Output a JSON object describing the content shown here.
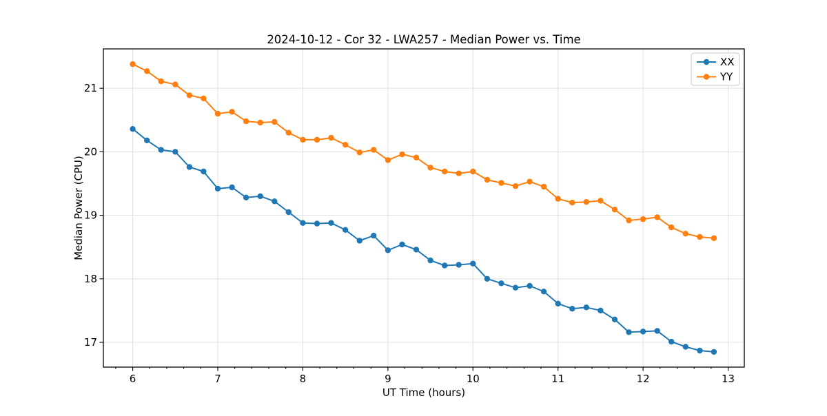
{
  "chart_data": {
    "type": "line",
    "title": "2024-10-12 - Cor 32 - LWA257 - Median Power vs. Time",
    "xlabel": "UT Time (hours)",
    "ylabel": "Median Power (CPU)",
    "xlim": [
      5.655,
      13.19
    ],
    "ylim": [
      16.61,
      21.62
    ],
    "xticks": [
      6,
      7,
      8,
      9,
      10,
      11,
      12,
      13
    ],
    "yticks": [
      17,
      18,
      19,
      20,
      21
    ],
    "x_minor_step": 0.2,
    "grid": true,
    "grid_color": "#e0e0e0",
    "background": "#ffffff",
    "spine_color": "#000000",
    "text_color": "#000000",
    "legend_position": "upper right",
    "x": [
      6,
      6.167,
      6.333,
      6.5,
      6.667,
      6.833,
      7,
      7.167,
      7.333,
      7.5,
      7.667,
      7.833,
      8,
      8.167,
      8.333,
      8.5,
      8.667,
      8.833,
      9,
      9.167,
      9.333,
      9.5,
      9.667,
      9.833,
      10,
      10.167,
      10.333,
      10.5,
      10.667,
      10.833,
      11,
      11.167,
      11.333,
      11.5,
      11.667,
      11.833,
      12,
      12.167,
      12.333,
      12.5,
      12.667,
      12.833
    ],
    "series": [
      {
        "name": "XX",
        "color": "#1f77b4",
        "marker": "circle",
        "values": [
          20.36,
          20.18,
          20.03,
          20.0,
          19.76,
          19.69,
          19.42,
          19.44,
          19.28,
          19.3,
          19.22,
          19.05,
          18.88,
          18.87,
          18.88,
          18.77,
          18.6,
          18.68,
          18.45,
          18.54,
          18.46,
          18.29,
          18.21,
          18.22,
          18.24,
          18.0,
          17.93,
          17.86,
          17.89,
          17.8,
          17.61,
          17.53,
          17.55,
          17.5,
          17.36,
          17.16,
          17.17,
          17.18,
          17.01,
          16.93,
          16.87,
          16.85
        ]
      },
      {
        "name": "YY",
        "color": "#ff7f0e",
        "marker": "circle",
        "values": [
          21.38,
          21.27,
          21.11,
          21.06,
          20.89,
          20.84,
          20.6,
          20.63,
          20.48,
          20.46,
          20.47,
          20.3,
          20.19,
          20.19,
          20.22,
          20.11,
          19.99,
          20.03,
          19.87,
          19.96,
          19.91,
          19.75,
          19.69,
          19.66,
          19.69,
          19.56,
          19.51,
          19.46,
          19.53,
          19.45,
          19.26,
          19.2,
          19.21,
          19.23,
          19.09,
          18.92,
          18.94,
          18.97,
          18.81,
          18.71,
          18.66,
          18.64
        ]
      }
    ]
  }
}
